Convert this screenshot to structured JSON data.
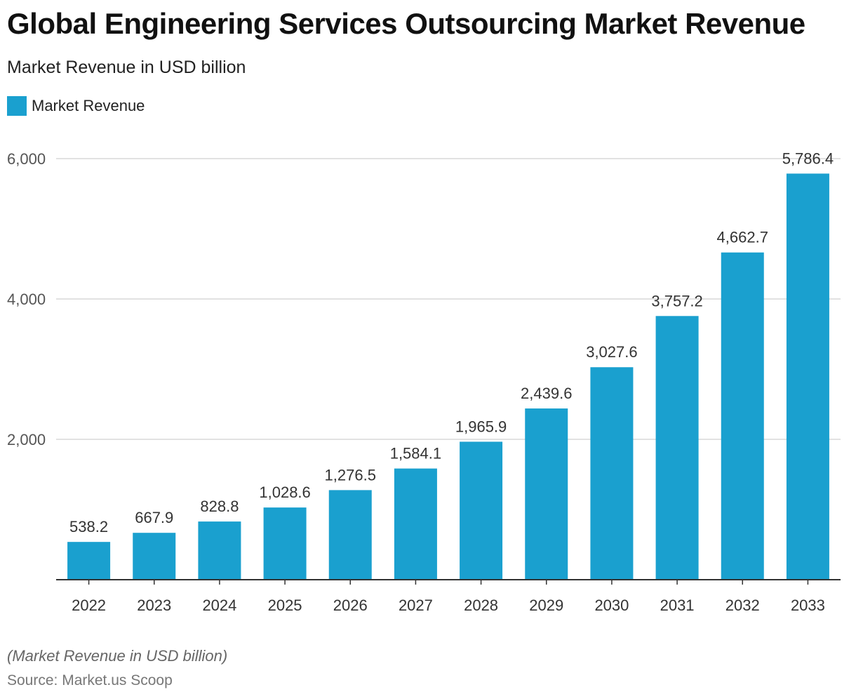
{
  "header": {
    "title": "Global Engineering Services Outsourcing Market Revenue",
    "subtitle": "Market Revenue in USD billion"
  },
  "footer": {
    "note": "(Market Revenue in USD billion)",
    "source": "Source: Market.us Scoop"
  },
  "colors": {
    "bar": "#1aa0cf",
    "grid": "#d9d9d9",
    "axis": "#333333"
  },
  "chart_data": {
    "type": "bar",
    "title": "Global Engineering Services Outsourcing Market Revenue",
    "subtitle": "Market Revenue in USD billion",
    "legend_position": "top-left",
    "grid": true,
    "categories": [
      "2022",
      "2023",
      "2024",
      "2025",
      "2026",
      "2027",
      "2028",
      "2029",
      "2030",
      "2031",
      "2032",
      "2033"
    ],
    "series": [
      {
        "name": "Market Revenue",
        "values": [
          538.2,
          667.9,
          828.8,
          1028.6,
          1276.5,
          1584.1,
          1965.9,
          2439.6,
          3027.6,
          3757.2,
          4662.7,
          5786.4
        ],
        "labels": [
          "538.2",
          "667.9",
          "828.8",
          "1,028.6",
          "1,276.5",
          "1,584.1",
          "1,965.9",
          "2,439.6",
          "3,027.6",
          "3,757.2",
          "4,662.7",
          "5,786.4"
        ]
      }
    ],
    "ylim": [
      0,
      6000
    ],
    "yticks": [
      2000,
      4000,
      6000
    ],
    "ytick_labels": [
      "2,000",
      "4,000",
      "6,000"
    ]
  }
}
